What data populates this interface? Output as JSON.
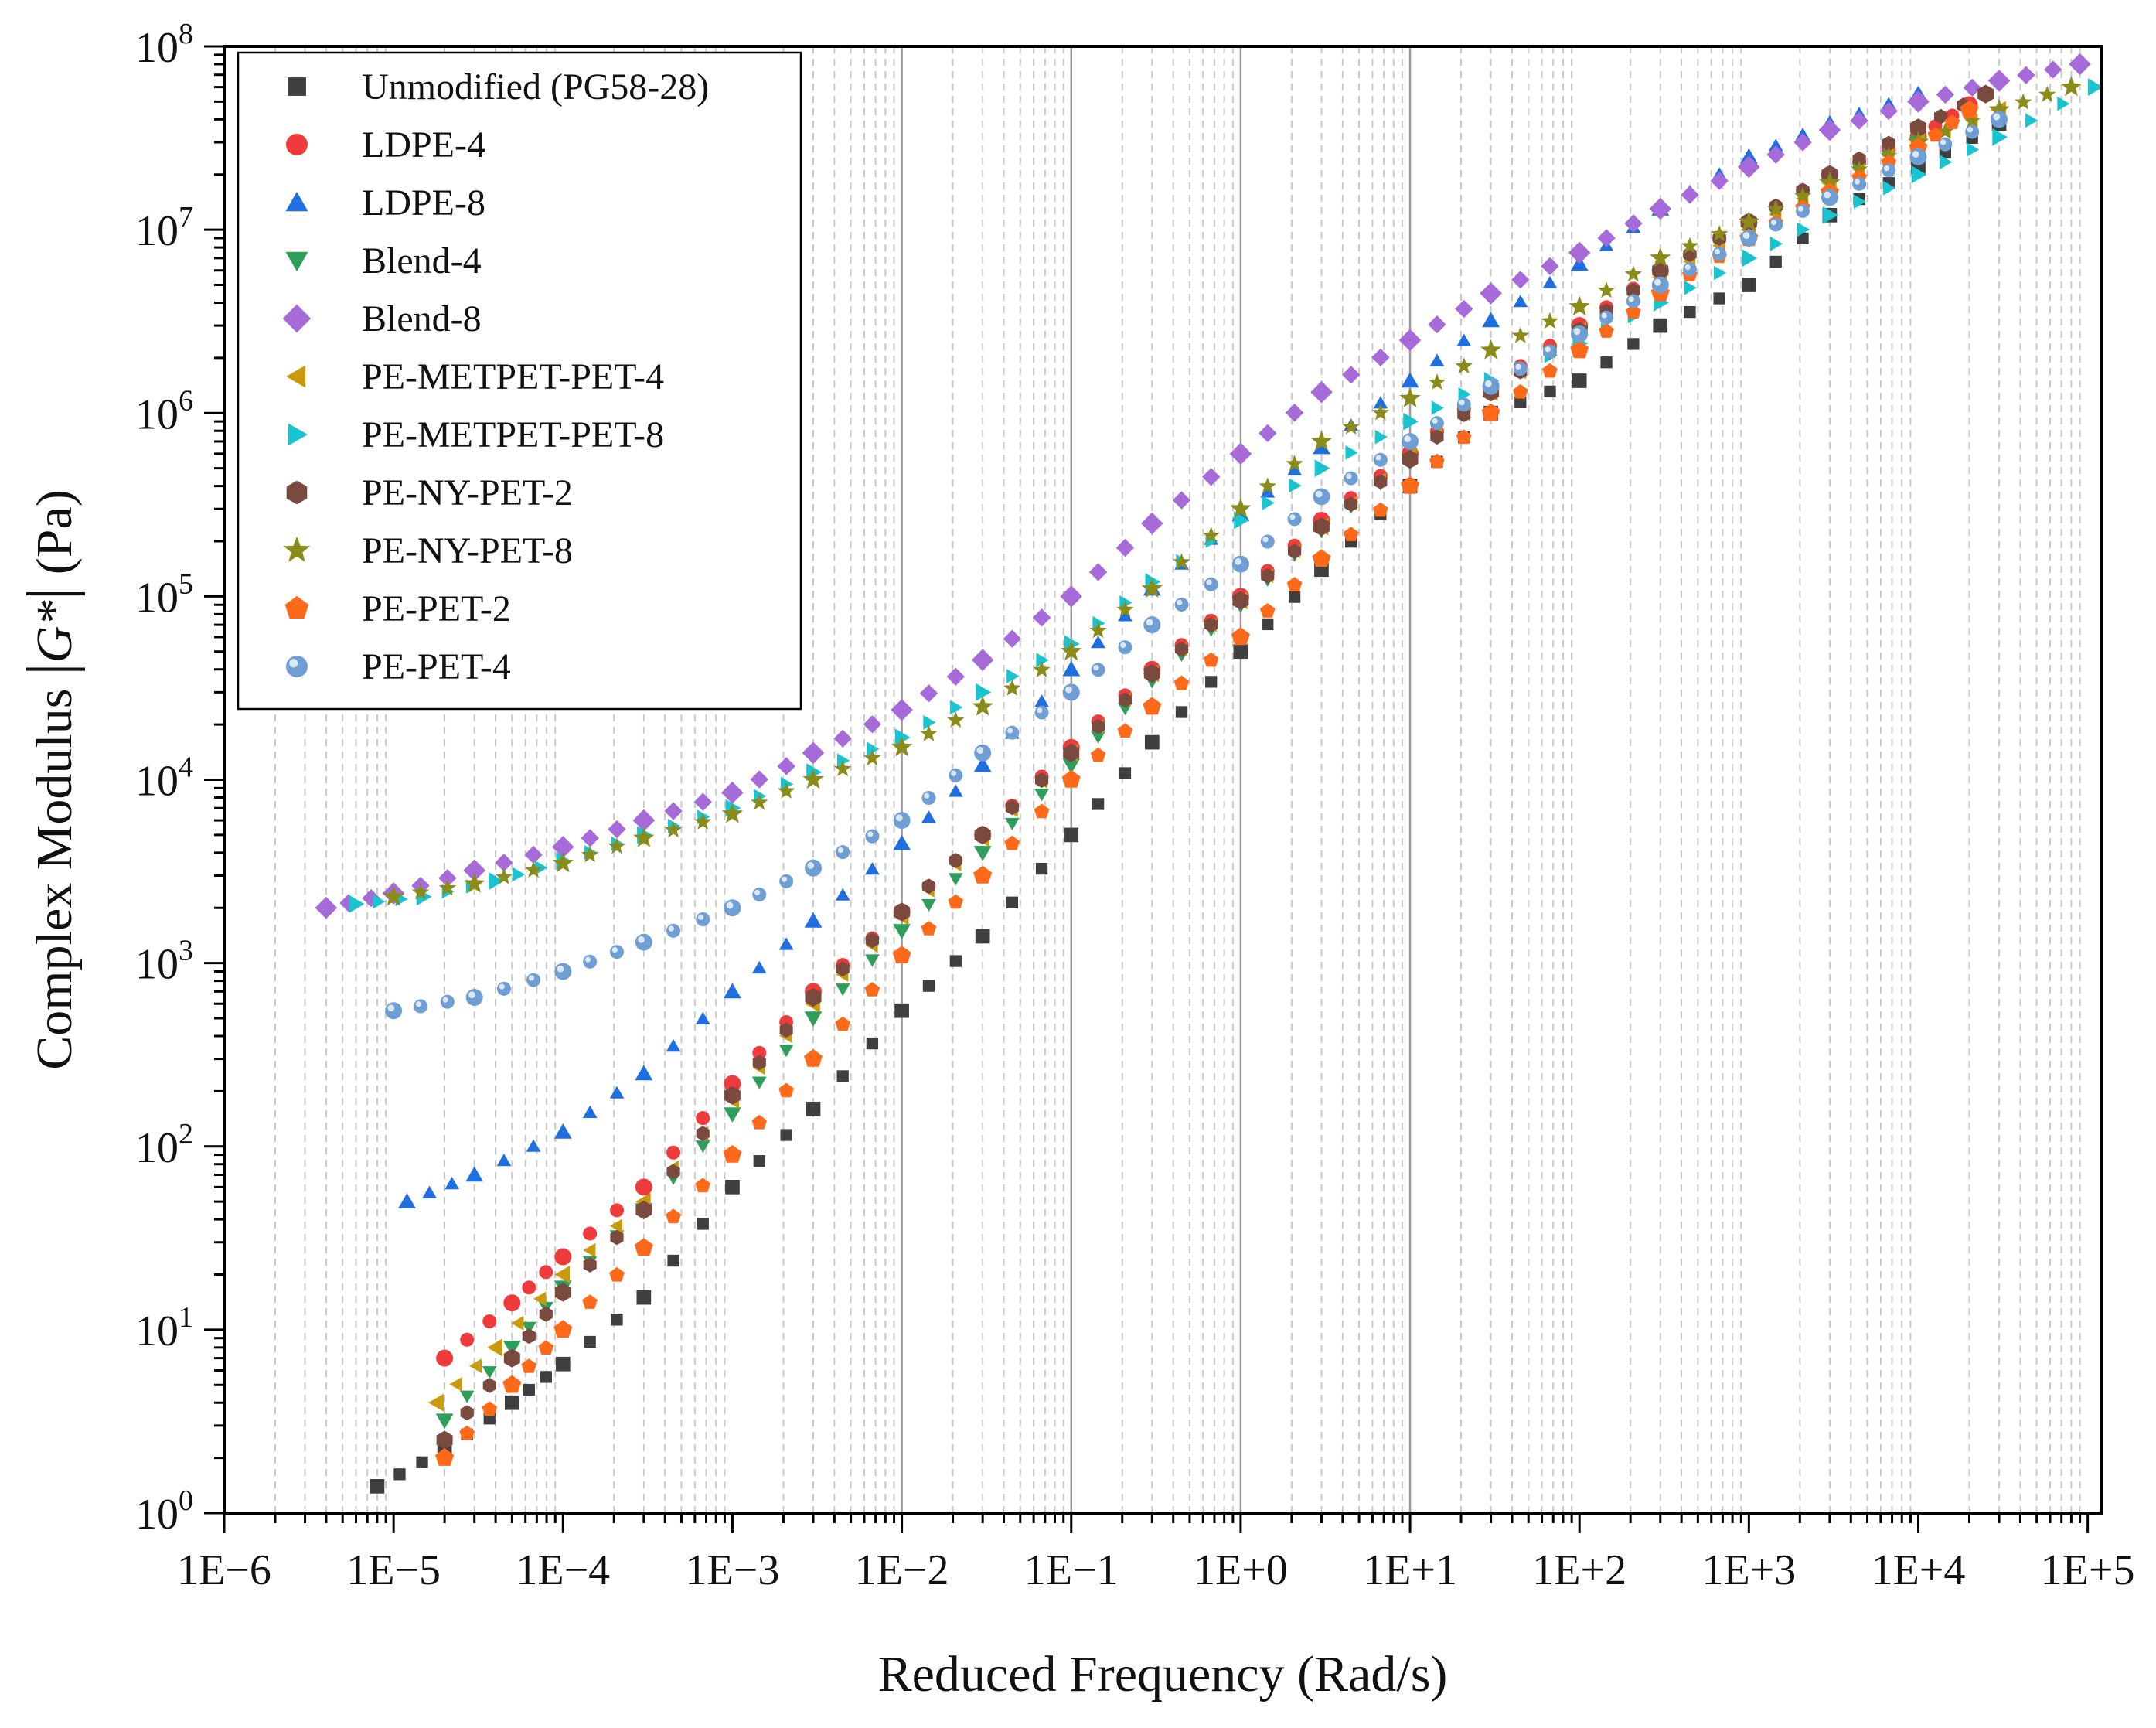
{
  "chart_data": {
    "type": "scatter",
    "title": "",
    "xlabel": "Reduced Frequency (Rad/s)",
    "ylabel": "Complex Modulus |G*| (Pa)",
    "ylabel_parts": {
      "before": "Complex Modulus ",
      "bar_left": "|",
      "symbol": "G*",
      "bar_right": "|",
      "after": " (Pa)"
    },
    "x_scale": "log",
    "y_scale": "log",
    "xlim": [
      1e-06,
      120000
    ],
    "ylim": [
      1,
      100000000
    ],
    "x_ticks": [
      {
        "value": 1e-06,
        "label": "1E−6"
      },
      {
        "value": 1e-05,
        "label": "1E−5"
      },
      {
        "value": 0.0001,
        "label": "1E−4"
      },
      {
        "value": 0.001,
        "label": "1E−3"
      },
      {
        "value": 0.01,
        "label": "1E−2"
      },
      {
        "value": 0.1,
        "label": "1E−1"
      },
      {
        "value": 1,
        "label": "1E+0"
      },
      {
        "value": 10,
        "label": "1E+1"
      },
      {
        "value": 100,
        "label": "1E+2"
      },
      {
        "value": 1000,
        "label": "1E+3"
      },
      {
        "value": 10000,
        "label": "1E+4"
      },
      {
        "value": 100000,
        "label": "1E+5"
      }
    ],
    "y_ticks": [
      {
        "value": 1,
        "base": "10",
        "exp": "0"
      },
      {
        "value": 10,
        "base": "10",
        "exp": "1"
      },
      {
        "value": 100,
        "base": "10",
        "exp": "2"
      },
      {
        "value": 1000,
        "base": "10",
        "exp": "3"
      },
      {
        "value": 10000,
        "base": "10",
        "exp": "4"
      },
      {
        "value": 100000,
        "base": "10",
        "exp": "5"
      },
      {
        "value": 1000000,
        "base": "10",
        "exp": "6"
      },
      {
        "value": 10000000,
        "base": "10",
        "exp": "7"
      },
      {
        "value": 100000000,
        "base": "10",
        "exp": "8"
      }
    ],
    "grid": {
      "major_vertical": true,
      "minor_vertical_dashed": true,
      "horizontal": false
    },
    "legend_position": "top-left",
    "series": [
      {
        "name": "Unmodified (PG58-28)",
        "marker": "square",
        "color": "#3f3f3f",
        "x": [
          8e-06,
          2e-05,
          5e-05,
          0.0001,
          0.0003,
          0.001,
          0.003,
          0.01,
          0.03,
          0.1,
          0.3,
          1,
          3,
          10,
          30,
          100,
          300,
          1000,
          3000,
          10000,
          30000
        ],
        "y": [
          1.4,
          2.2,
          4.0,
          6.5,
          15,
          60,
          160,
          550,
          1400,
          5000,
          16000,
          50000,
          140000,
          400000,
          1000000,
          1500000,
          3000000,
          5000000,
          12000000,
          22000000,
          38000000
        ]
      },
      {
        "name": "LDPE-4",
        "marker": "circle",
        "color": "#ef3b3b",
        "x": [
          2e-05,
          5e-05,
          0.0001,
          0.0003,
          0.001,
          0.003,
          0.01,
          0.03,
          0.1,
          0.3,
          1,
          3,
          10,
          30,
          100,
          300,
          1000,
          3000,
          10000,
          20000
        ],
        "y": [
          7,
          14,
          25,
          60,
          220,
          700,
          1900,
          5000,
          15000,
          40000,
          100000,
          260000,
          600000,
          1400000,
          3000000,
          6000000,
          11000000,
          20000000,
          32000000,
          48000000
        ]
      },
      {
        "name": "LDPE-8",
        "marker": "triangle-up",
        "color": "#1f6fe0",
        "x": [
          1.2e-05,
          3e-05,
          0.0001,
          0.0003,
          0.001,
          0.003,
          0.01,
          0.03,
          0.1,
          0.3,
          1,
          3,
          10,
          30,
          100,
          300,
          1000,
          3000,
          10000
        ],
        "y": [
          50,
          70,
          120,
          250,
          700,
          1700,
          4500,
          12000,
          40000,
          110000,
          280000,
          650000,
          1500000,
          3200000,
          6500000,
          13000000,
          25000000,
          38000000,
          55000000
        ]
      },
      {
        "name": "Blend-4",
        "marker": "triangle-down",
        "color": "#2e9e5b",
        "x": [
          2e-05,
          5e-05,
          0.0001,
          0.0003,
          0.001,
          0.003,
          0.01,
          0.03,
          0.1,
          0.3,
          1,
          3,
          10,
          30,
          100,
          300,
          1000,
          3000,
          10000
        ],
        "y": [
          3.2,
          8,
          17,
          45,
          150,
          500,
          1500,
          4000,
          12000,
          35000,
          90000,
          230000,
          550000,
          1300000,
          2800000,
          5500000,
          10000000,
          18000000,
          30000000
        ]
      },
      {
        "name": "Blend-8",
        "marker": "diamond",
        "color": "#a66ad9",
        "x": [
          4e-06,
          1e-05,
          3e-05,
          0.0001,
          0.0003,
          0.001,
          0.003,
          0.01,
          0.03,
          0.1,
          0.3,
          1,
          3,
          10,
          30,
          100,
          300,
          1000,
          3000,
          10000,
          30000,
          90000
        ],
        "y": [
          2000,
          2400,
          3200,
          4300,
          6000,
          8500,
          14000,
          24000,
          45000,
          100000,
          250000,
          600000,
          1300000,
          2500000,
          4500000,
          7500000,
          13000000,
          22000000,
          35000000,
          50000000,
          65000000,
          80000000
        ]
      },
      {
        "name": "PE-METPET-PET-4",
        "marker": "triangle-left",
        "color": "#c99a0b",
        "x": [
          1.8e-05,
          4e-05,
          0.0001,
          0.0003,
          0.001,
          0.003,
          0.01,
          0.03,
          0.1,
          0.3,
          1,
          3,
          10,
          30,
          100,
          300,
          1000,
          3000,
          10000,
          30000
        ],
        "y": [
          4,
          8,
          20,
          50,
          180,
          600,
          1800,
          4800,
          14000,
          38000,
          95000,
          240000,
          580000,
          1300000,
          2800000,
          5500000,
          10000000,
          18000000,
          30000000,
          45000000
        ]
      },
      {
        "name": "PE-METPET-PET-8",
        "marker": "triangle-right",
        "color": "#18c4cf",
        "x": [
          6e-06,
          1.5e-05,
          4e-05,
          0.0001,
          0.0003,
          0.001,
          0.003,
          0.01,
          0.03,
          0.1,
          0.3,
          1,
          3,
          10,
          30,
          100,
          300,
          1000,
          3000,
          10000,
          30000,
          110000
        ],
        "y": [
          2100,
          2300,
          2800,
          3600,
          5000,
          7000,
          11000,
          17000,
          30000,
          55000,
          120000,
          260000,
          500000,
          900000,
          1500000,
          2400000,
          4000000,
          7000000,
          12000000,
          20000000,
          32000000,
          60000000
        ]
      },
      {
        "name": "PE-NY-PET-2",
        "marker": "hexagon",
        "color": "#7a4a3f",
        "x": [
          2e-05,
          5e-05,
          0.0001,
          0.0003,
          0.001,
          0.003,
          0.01,
          0.03,
          0.1,
          0.3,
          1,
          3,
          10,
          30,
          100,
          300,
          1000,
          3000,
          10000,
          25000
        ],
        "y": [
          2.5,
          7,
          16,
          45,
          190,
          650,
          1900,
          5000,
          14000,
          38000,
          95000,
          240000,
          560000,
          1300000,
          2800000,
          6000000,
          11000000,
          20000000,
          36000000,
          55000000
        ]
      },
      {
        "name": "PE-NY-PET-8",
        "marker": "star",
        "color": "#8b8b1a",
        "x": [
          1e-05,
          3e-05,
          0.0001,
          0.0003,
          0.001,
          0.003,
          0.01,
          0.03,
          0.1,
          0.3,
          1,
          3,
          10,
          30,
          100,
          300,
          1000,
          3000,
          10000,
          30000,
          80000
        ],
        "y": [
          2300,
          2700,
          3500,
          4800,
          6500,
          10000,
          15000,
          25000,
          50000,
          110000,
          300000,
          700000,
          1200000,
          2200000,
          3800000,
          7000000,
          11000000,
          18000000,
          30000000,
          45000000,
          60000000
        ]
      },
      {
        "name": "PE-PET-2",
        "marker": "pentagon",
        "color": "#ff6a1a",
        "x": [
          2e-05,
          5e-05,
          0.0001,
          0.0003,
          0.001,
          0.003,
          0.01,
          0.03,
          0.1,
          0.3,
          1,
          3,
          10,
          30,
          100,
          300,
          1000,
          3000,
          10000,
          20000
        ],
        "y": [
          2,
          5,
          10,
          28,
          90,
          300,
          1100,
          3000,
          10000,
          25000,
          60000,
          160000,
          400000,
          1000000,
          2200000,
          4500000,
          9000000,
          16000000,
          28000000,
          45000000
        ]
      },
      {
        "name": "PE-PET-4",
        "marker": "sphere",
        "color": "#6f9ed4",
        "x": [
          1e-05,
          3e-05,
          0.0001,
          0.0003,
          0.001,
          0.003,
          0.01,
          0.03,
          0.1,
          0.3,
          1,
          3,
          10,
          30,
          100,
          300,
          1000,
          3000,
          10000,
          30000
        ],
        "y": [
          550,
          650,
          900,
          1300,
          2000,
          3300,
          6000,
          14000,
          30000,
          70000,
          150000,
          350000,
          700000,
          1400000,
          2700000,
          5000000,
          9000000,
          15000000,
          25000000,
          40000000
        ]
      }
    ]
  }
}
